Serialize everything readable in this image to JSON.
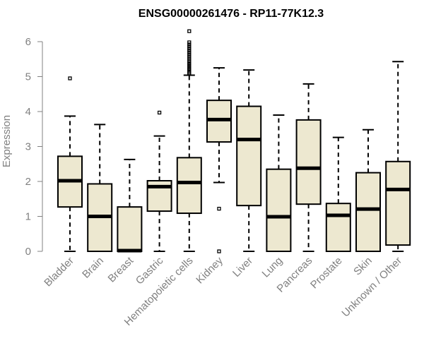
{
  "chart_data": {
    "type": "boxplot",
    "title": "ENSG00000261476 - RP11-77K12.3",
    "xlabel": "",
    "ylabel": "Expression",
    "ylim": [
      0,
      6
    ],
    "yticks": [
      0,
      1,
      2,
      3,
      4,
      5,
      6
    ],
    "grid": false,
    "box_color": "#EDE8D0",
    "categories": [
      "Bladder",
      "Brain",
      "Breast",
      "Gastric",
      "Hematopoietic cells",
      "Kidney",
      "Liver",
      "Lung",
      "Pancreas",
      "Prostate",
      "Skin",
      "Unknown / Other"
    ],
    "boxes": [
      {
        "name": "Bladder",
        "whisker_low": 0,
        "q1": 1.27,
        "median": 2.02,
        "q3": 2.72,
        "whisker_high": 3.87,
        "outliers": [
          4.95
        ]
      },
      {
        "name": "Brain",
        "whisker_low": 0,
        "q1": 0,
        "median": 1.0,
        "q3": 1.93,
        "whisker_high": 3.63,
        "outliers": []
      },
      {
        "name": "Breast",
        "whisker_low": 0,
        "q1": 0,
        "median": 0.02,
        "q3": 1.27,
        "whisker_high": 2.63,
        "outliers": []
      },
      {
        "name": "Gastric",
        "whisker_low": 0,
        "q1": 1.15,
        "median": 1.85,
        "q3": 2.02,
        "whisker_high": 3.3,
        "outliers": [
          3.97
        ]
      },
      {
        "name": "Hematopoietic cells",
        "whisker_low": 0,
        "q1": 1.09,
        "median": 1.97,
        "q3": 2.68,
        "whisker_high": 5.04,
        "outliers": [
          5.08,
          5.12,
          5.17,
          5.22,
          5.27,
          5.33,
          5.38,
          5.44,
          5.5,
          5.56,
          5.62,
          5.68,
          5.74,
          5.8,
          5.86,
          5.92,
          5.98,
          6.3
        ]
      },
      {
        "name": "Kidney",
        "whisker_low": 1.97,
        "q1": 3.13,
        "median": 3.77,
        "q3": 4.32,
        "whisker_high": 5.25,
        "outliers": [
          1.22,
          0
        ]
      },
      {
        "name": "Liver",
        "whisker_low": 0,
        "q1": 1.31,
        "median": 3.2,
        "q3": 4.15,
        "whisker_high": 5.19,
        "outliers": []
      },
      {
        "name": "Lung",
        "whisker_low": 0,
        "q1": 0,
        "median": 0.99,
        "q3": 2.35,
        "whisker_high": 3.9,
        "outliers": []
      },
      {
        "name": "Pancreas",
        "whisker_low": 0,
        "q1": 1.35,
        "median": 2.38,
        "q3": 3.76,
        "whisker_high": 4.79,
        "outliers": []
      },
      {
        "name": "Prostate",
        "whisker_low": 0,
        "q1": 0,
        "median": 1.03,
        "q3": 1.37,
        "whisker_high": 3.26,
        "outliers": []
      },
      {
        "name": "Skin",
        "whisker_low": 0,
        "q1": 0,
        "median": 1.21,
        "q3": 2.25,
        "whisker_high": 3.48,
        "outliers": []
      },
      {
        "name": "Unknown / Other",
        "whisker_low": 0,
        "q1": 0.18,
        "median": 1.77,
        "q3": 2.57,
        "whisker_high": 5.43,
        "outliers": []
      }
    ]
  }
}
